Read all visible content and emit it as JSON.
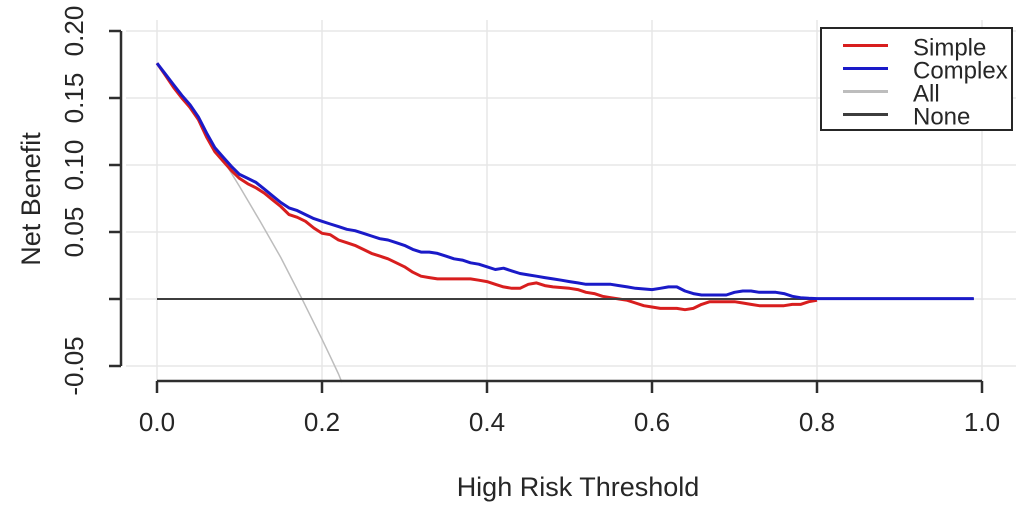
{
  "chart_data": {
    "type": "line",
    "title": "",
    "axes": {
      "x": {
        "label": "High Risk Threshold",
        "range": [
          0.0,
          1.0
        ],
        "ticks": [
          0.0,
          0.2,
          0.4,
          0.6,
          0.8,
          1.0
        ],
        "tick_labels": [
          "0.0",
          "0.2",
          "0.4",
          "0.6",
          "0.8",
          "1.0"
        ]
      },
      "y": {
        "label": "Net Benefit",
        "range": [
          -0.062,
          0.205
        ],
        "ticks": [
          0.2,
          0.15,
          0.1,
          0.05,
          0.0,
          -0.05
        ],
        "tick_labels": [
          "0.20",
          "0.15",
          "0.10",
          "0.05",
          "",
          "-0.05"
        ]
      }
    },
    "grid": true,
    "legend": {
      "position": "top-right",
      "entries": [
        {
          "label": "Simple",
          "color": "#d81e1e"
        },
        {
          "label": "Complex",
          "color": "#1a1ac8"
        },
        {
          "label": "All",
          "color": "#bdbdbd"
        },
        {
          "label": "None",
          "color": "#3d3d3d"
        }
      ]
    },
    "draw_order": [
      2,
      0,
      3,
      1
    ],
    "series": [
      {
        "name": "Simple",
        "color": "#d81e1e",
        "width": 3,
        "points": [
          [
            0,
            0.176
          ],
          [
            0.01,
            0.167
          ],
          [
            0.02,
            0.158
          ],
          [
            0.03,
            0.15
          ],
          [
            0.04,
            0.143
          ],
          [
            0.05,
            0.134
          ],
          [
            0.06,
            0.121
          ],
          [
            0.07,
            0.11
          ],
          [
            0.08,
            0.103
          ],
          [
            0.09,
            0.096
          ],
          [
            0.1,
            0.09
          ],
          [
            0.11,
            0.086
          ],
          [
            0.12,
            0.083
          ],
          [
            0.13,
            0.079
          ],
          [
            0.14,
            0.074
          ],
          [
            0.15,
            0.069
          ],
          [
            0.16,
            0.063
          ],
          [
            0.17,
            0.061
          ],
          [
            0.18,
            0.058
          ],
          [
            0.19,
            0.053
          ],
          [
            0.2,
            0.049
          ],
          [
            0.21,
            0.048
          ],
          [
            0.22,
            0.044
          ],
          [
            0.23,
            0.042
          ],
          [
            0.24,
            0.04
          ],
          [
            0.25,
            0.037
          ],
          [
            0.26,
            0.034
          ],
          [
            0.27,
            0.032
          ],
          [
            0.28,
            0.03
          ],
          [
            0.29,
            0.027
          ],
          [
            0.3,
            0.024
          ],
          [
            0.31,
            0.02
          ],
          [
            0.32,
            0.017
          ],
          [
            0.33,
            0.016
          ],
          [
            0.34,
            0.015
          ],
          [
            0.38,
            0.015
          ],
          [
            0.39,
            0.014
          ],
          [
            0.4,
            0.013
          ],
          [
            0.41,
            0.011
          ],
          [
            0.42,
            0.009
          ],
          [
            0.43,
            0.008
          ],
          [
            0.44,
            0.008
          ],
          [
            0.45,
            0.011
          ],
          [
            0.46,
            0.012
          ],
          [
            0.47,
            0.01
          ],
          [
            0.48,
            0.009
          ],
          [
            0.5,
            0.008
          ],
          [
            0.51,
            0.007
          ],
          [
            0.52,
            0.005
          ],
          [
            0.53,
            0.004
          ],
          [
            0.54,
            0.002
          ],
          [
            0.55,
            0.001
          ],
          [
            0.56,
            0
          ],
          [
            0.57,
            -0.001
          ],
          [
            0.58,
            -0.003
          ],
          [
            0.59,
            -0.005
          ],
          [
            0.6,
            -0.006
          ],
          [
            0.61,
            -0.007
          ],
          [
            0.63,
            -0.007
          ],
          [
            0.64,
            -0.008
          ],
          [
            0.65,
            -0.007
          ],
          [
            0.66,
            -0.004
          ],
          [
            0.67,
            -0.002
          ],
          [
            0.7,
            -0.002
          ],
          [
            0.71,
            -0.003
          ],
          [
            0.72,
            -0.004
          ],
          [
            0.73,
            -0.005
          ],
          [
            0.76,
            -0.005
          ],
          [
            0.77,
            -0.004
          ],
          [
            0.78,
            -0.004
          ],
          [
            0.79,
            -0.002
          ],
          [
            0.8,
            -0.001
          ]
        ]
      },
      {
        "name": "Complex",
        "color": "#1a1ac8",
        "width": 3,
        "points": [
          [
            0,
            0.176
          ],
          [
            0.01,
            0.168
          ],
          [
            0.02,
            0.16
          ],
          [
            0.03,
            0.152
          ],
          [
            0.04,
            0.145
          ],
          [
            0.05,
            0.136
          ],
          [
            0.06,
            0.124
          ],
          [
            0.07,
            0.113
          ],
          [
            0.08,
            0.106
          ],
          [
            0.09,
            0.099
          ],
          [
            0.1,
            0.093
          ],
          [
            0.11,
            0.09
          ],
          [
            0.12,
            0.087
          ],
          [
            0.13,
            0.082
          ],
          [
            0.14,
            0.077
          ],
          [
            0.15,
            0.072
          ],
          [
            0.16,
            0.068
          ],
          [
            0.17,
            0.066
          ],
          [
            0.18,
            0.063
          ],
          [
            0.19,
            0.06
          ],
          [
            0.2,
            0.058
          ],
          [
            0.21,
            0.056
          ],
          [
            0.22,
            0.054
          ],
          [
            0.23,
            0.052
          ],
          [
            0.24,
            0.051
          ],
          [
            0.25,
            0.049
          ],
          [
            0.26,
            0.047
          ],
          [
            0.27,
            0.045
          ],
          [
            0.28,
            0.044
          ],
          [
            0.29,
            0.042
          ],
          [
            0.3,
            0.04
          ],
          [
            0.31,
            0.037
          ],
          [
            0.32,
            0.035
          ],
          [
            0.33,
            0.035
          ],
          [
            0.34,
            0.034
          ],
          [
            0.35,
            0.032
          ],
          [
            0.36,
            0.03
          ],
          [
            0.37,
            0.029
          ],
          [
            0.38,
            0.027
          ],
          [
            0.39,
            0.026
          ],
          [
            0.4,
            0.024
          ],
          [
            0.41,
            0.022
          ],
          [
            0.42,
            0.023
          ],
          [
            0.43,
            0.021
          ],
          [
            0.44,
            0.019
          ],
          [
            0.45,
            0.018
          ],
          [
            0.46,
            0.017
          ],
          [
            0.47,
            0.016
          ],
          [
            0.48,
            0.015
          ],
          [
            0.49,
            0.014
          ],
          [
            0.5,
            0.013
          ],
          [
            0.51,
            0.012
          ],
          [
            0.52,
            0.011
          ],
          [
            0.55,
            0.011
          ],
          [
            0.56,
            0.01
          ],
          [
            0.57,
            0.009
          ],
          [
            0.58,
            0.008
          ],
          [
            0.6,
            0.007
          ],
          [
            0.61,
            0.008
          ],
          [
            0.62,
            0.009
          ],
          [
            0.63,
            0.009
          ],
          [
            0.64,
            0.006
          ],
          [
            0.65,
            0.004
          ],
          [
            0.66,
            0.003
          ],
          [
            0.69,
            0.003
          ],
          [
            0.7,
            0.005
          ],
          [
            0.71,
            0.006
          ],
          [
            0.72,
            0.006
          ],
          [
            0.73,
            0.005
          ],
          [
            0.75,
            0.005
          ],
          [
            0.76,
            0.004
          ],
          [
            0.77,
            0.002
          ],
          [
            0.78,
            0.001
          ],
          [
            0.79,
            0.0005
          ],
          [
            0.8,
            0.0003
          ],
          [
            0.99,
            0.0003
          ]
        ]
      },
      {
        "name": "All",
        "color": "#bdbdbd",
        "width": 1.5,
        "points": [
          [
            0,
            0.176
          ],
          [
            0.025,
            0.155
          ],
          [
            0.05,
            0.133
          ],
          [
            0.075,
            0.109
          ],
          [
            0.1,
            0.084
          ],
          [
            0.125,
            0.058
          ],
          [
            0.15,
            0.031
          ],
          [
            0.175,
            0.001
          ],
          [
            0.2,
            -0.03
          ],
          [
            0.21,
            -0.043
          ],
          [
            0.22,
            -0.056
          ],
          [
            0.224,
            -0.062
          ]
        ]
      },
      {
        "name": "None",
        "color": "#3d3d3d",
        "width": 2,
        "points": [
          [
            0,
            0
          ],
          [
            0.99,
            0
          ]
        ]
      }
    ]
  },
  "colors": {
    "background": "#ffffff",
    "grid": "#e7e7e7",
    "axis": "#2e2e2e",
    "text": "#262626"
  }
}
